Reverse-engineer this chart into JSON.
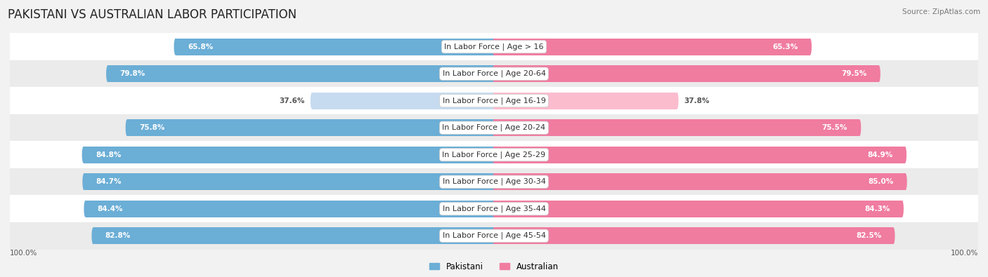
{
  "title": "PAKISTANI VS AUSTRALIAN LABOR PARTICIPATION",
  "source": "Source: ZipAtlas.com",
  "categories": [
    "In Labor Force | Age > 16",
    "In Labor Force | Age 20-64",
    "In Labor Force | Age 16-19",
    "In Labor Force | Age 20-24",
    "In Labor Force | Age 25-29",
    "In Labor Force | Age 30-34",
    "In Labor Force | Age 35-44",
    "In Labor Force | Age 45-54"
  ],
  "pakistani_values": [
    65.8,
    79.8,
    37.6,
    75.8,
    84.8,
    84.7,
    84.4,
    82.8
  ],
  "australian_values": [
    65.3,
    79.5,
    37.8,
    75.5,
    84.9,
    85.0,
    84.3,
    82.5
  ],
  "pakistani_color_full": "#6BAED6",
  "australian_color_full": "#F07CA0",
  "pakistani_color_light": "#C6DBEF",
  "australian_color_light": "#FBBCCE",
  "background_color": "#f2f2f2",
  "row_bg_odd": "#ffffff",
  "row_bg_even": "#ebebeb",
  "max_value": 100.0,
  "full_threshold": 50.0,
  "title_fontsize": 12,
  "label_fontsize": 8,
  "value_fontsize": 7.5,
  "legend_fontsize": 8.5,
  "axis_label_fontsize": 7.5
}
